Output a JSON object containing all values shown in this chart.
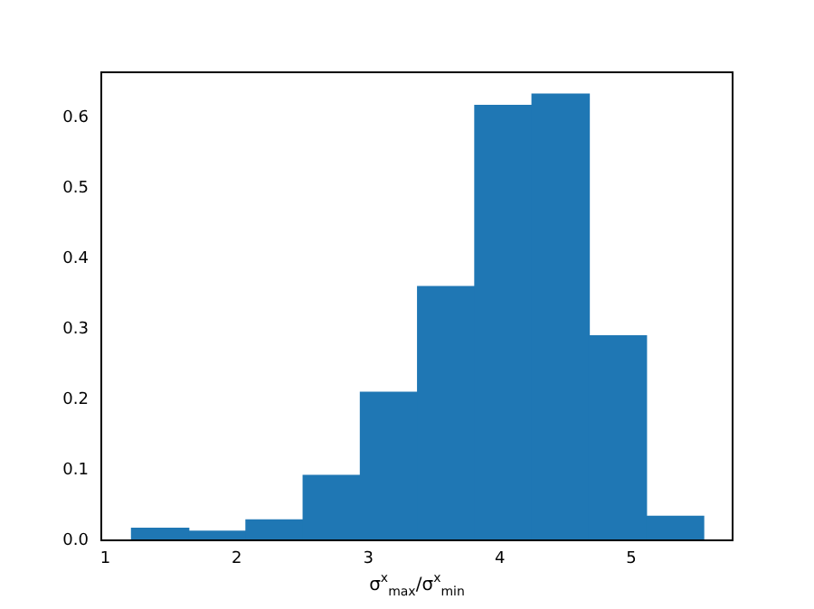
{
  "chart_data": {
    "type": "histogram",
    "xlabel": "σ$^{x}$$_{max}$/σ$^{x}$$_{min}$",
    "bins": [
      1.2,
      1.635,
      2.07,
      2.505,
      2.94,
      3.375,
      3.81,
      4.245,
      4.68,
      5.115,
      5.55
    ],
    "values": [
      0.017,
      0.013,
      0.029,
      0.092,
      0.21,
      0.36,
      0.617,
      0.633,
      0.29,
      0.034
    ],
    "color": "#1f77b4",
    "xlim": [
      0.97,
      5.77
    ],
    "xticks": [
      1,
      2,
      3,
      4,
      5
    ],
    "ylim": [
      0,
      0.664
    ],
    "yticks": [
      {
        "value": 0,
        "label": "0.0"
      },
      0.1,
      0.2,
      0.3,
      0.4,
      0.5,
      0.6
    ],
    "grid": false
  }
}
